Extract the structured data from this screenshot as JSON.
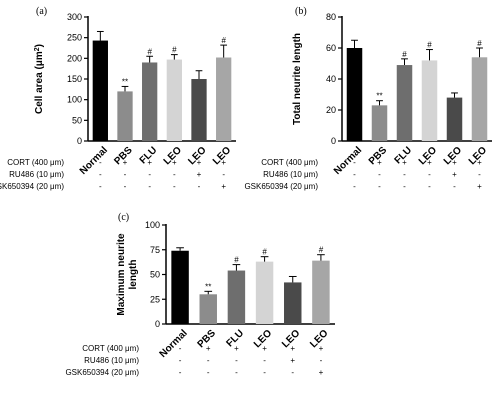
{
  "chart_data": [
    {
      "type": "bar",
      "panel_label": "(a)",
      "ylabel": "Cell area (μm²)",
      "ylabel_main": "Cell area (μm",
      "ylabel_sup": "2",
      "ylabel_end": ")",
      "ylim": [
        0,
        300
      ],
      "yticks": [
        0,
        50,
        100,
        150,
        200,
        250,
        300
      ],
      "categories": [
        "Normal",
        "PBS",
        "FLU",
        "LEO",
        "LEO",
        "LEO"
      ],
      "values": [
        243,
        120,
        190,
        197,
        150,
        202
      ],
      "errors": [
        22,
        12,
        15,
        12,
        20,
        30
      ],
      "annotations": [
        "",
        "**",
        "#",
        "#",
        "",
        "#"
      ],
      "colors": [
        "#000000",
        "#8c8c8c",
        "#6e6e6e",
        "#d4d4d4",
        "#4a4a4a",
        "#a6a6a6"
      ]
    },
    {
      "type": "bar",
      "panel_label": "(b)",
      "ylabel": "Total neurite length",
      "ylim": [
        0,
        80
      ],
      "yticks": [
        0,
        20,
        40,
        60,
        80
      ],
      "categories": [
        "Normal",
        "PBS",
        "FLU",
        "LEO",
        "LEO",
        "LEO"
      ],
      "values": [
        60,
        23,
        49,
        52,
        28,
        54
      ],
      "errors": [
        5,
        3,
        4,
        7,
        3,
        6
      ],
      "annotations": [
        "",
        "**",
        "#",
        "#",
        "",
        "#"
      ],
      "colors": [
        "#000000",
        "#8c8c8c",
        "#6e6e6e",
        "#d4d4d4",
        "#4a4a4a",
        "#a6a6a6"
      ]
    },
    {
      "type": "bar",
      "panel_label": "(c)",
      "ylabel": "Maximum neurite length",
      "ylabel_lines": [
        "Maximum neurite",
        "length"
      ],
      "ylim": [
        0,
        100
      ],
      "yticks": [
        0,
        25,
        50,
        75,
        100
      ],
      "categories": [
        "Normal",
        "PBS",
        "FLU",
        "LEO",
        "LEO",
        "LEO"
      ],
      "values": [
        74,
        30,
        54,
        63,
        42,
        64
      ],
      "errors": [
        3,
        3,
        6,
        5,
        6,
        6
      ],
      "annotations": [
        "",
        "**",
        "#",
        "#",
        "",
        "#"
      ],
      "colors": [
        "#000000",
        "#8c8c8c",
        "#6e6e6e",
        "#d4d4d4",
        "#4a4a4a",
        "#a6a6a6"
      ]
    }
  ],
  "treatments": [
    {
      "label": "CORT (400 μm)",
      "symbols": [
        "-",
        "+",
        "+",
        "+",
        "+",
        "+"
      ]
    },
    {
      "label": "RU486 (10 μm)",
      "symbols": [
        "-",
        "-",
        "-",
        "-",
        "+",
        "-"
      ]
    },
    {
      "label": "GSK650394 (20 μm)",
      "symbols": [
        "-",
        "-",
        "-",
        "-",
        "-",
        "+"
      ]
    }
  ]
}
